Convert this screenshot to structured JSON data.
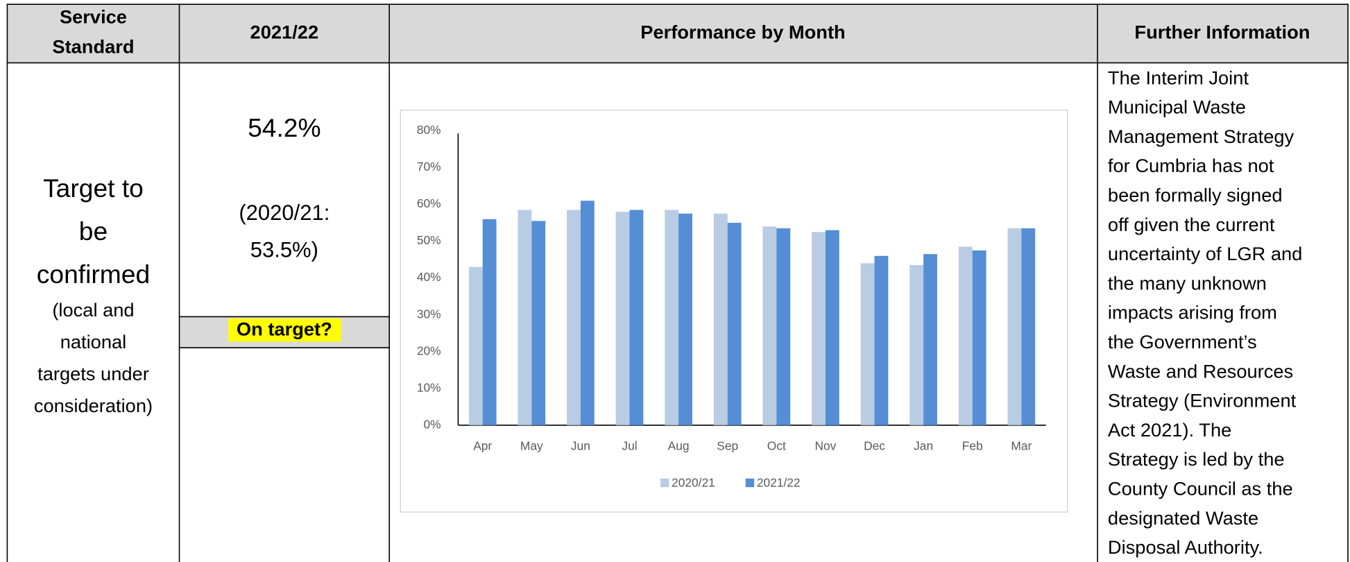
{
  "table": {
    "header": [
      [
        "Service",
        "Standard"
      ],
      [
        "2021/22"
      ],
      [
        "Performance by Month"
      ],
      [
        "Further Information"
      ]
    ],
    "service_standard": {
      "target": [
        "Target to",
        "be",
        "confirmed"
      ],
      "note": [
        "(local and",
        "national",
        "targets under",
        "consideration)"
      ]
    },
    "result": {
      "value": "54.2%",
      "previous": [
        "(2020/21:",
        "53.5%)"
      ],
      "status": "On target?"
    },
    "further_information": [
      "The Interim Joint",
      "Municipal Waste",
      "Management Strategy",
      "for Cumbria has not",
      "been formally signed",
      "off given the current",
      "uncertainty of LGR and",
      "the many unknown",
      "impacts arising from",
      "the Government’s",
      "Waste and Resources",
      "Strategy (Environment",
      "Act 2021). The",
      "Strategy is led by the",
      "County Council as the",
      "designated Waste",
      "Disposal Authority."
    ]
  },
  "chart_data": {
    "type": "bar",
    "categories": [
      "Apr",
      "May",
      "Jun",
      "Jul",
      "Aug",
      "Sep",
      "Oct",
      "Nov",
      "Dec",
      "Jan",
      "Feb",
      "Mar"
    ],
    "series": [
      {
        "name": "2020/21",
        "color": "#b8cce4",
        "values": [
          43,
          58.5,
          58.5,
          58,
          58.5,
          57.5,
          54,
          52.5,
          44,
          43.5,
          48.5,
          53.5
        ]
      },
      {
        "name": "2021/22",
        "color": "#558ed5",
        "values": [
          56,
          55.5,
          61,
          58.5,
          57.5,
          55,
          53.5,
          53,
          46,
          46.5,
          47.5,
          53.5
        ]
      }
    ],
    "ylim": [
      0,
      80
    ],
    "yticks": [
      {
        "value": 0,
        "label": "0%"
      },
      {
        "value": 10,
        "label": "10%"
      },
      {
        "value": 20,
        "label": "20%"
      },
      {
        "value": 30,
        "label": "30%"
      },
      {
        "value": 40,
        "label": "40%"
      },
      {
        "value": 50,
        "label": "50%"
      },
      {
        "value": 60,
        "label": "60%"
      },
      {
        "value": 70,
        "label": "70%"
      },
      {
        "value": 80,
        "label": "80%"
      }
    ],
    "grid": false,
    "legend": "bottom"
  }
}
